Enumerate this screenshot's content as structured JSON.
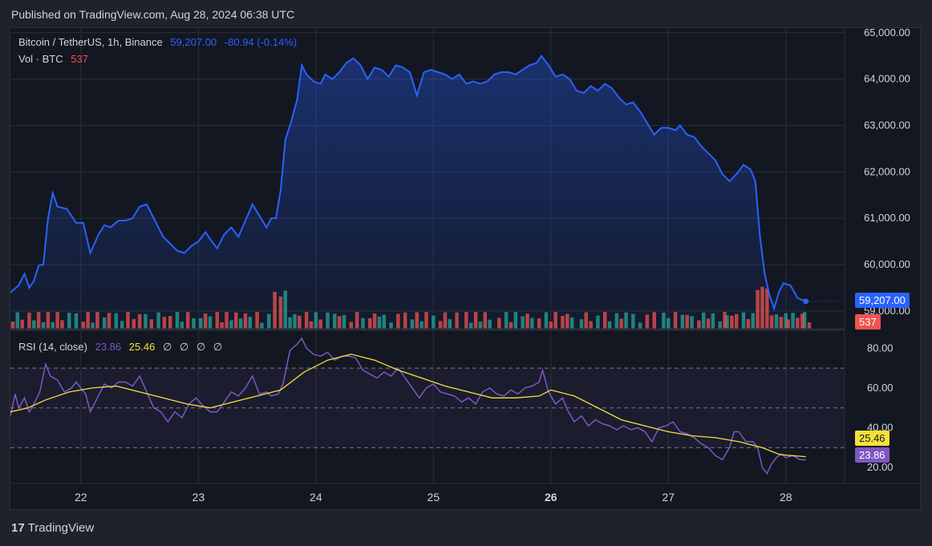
{
  "header": {
    "published": "Published on TradingView.com, Aug 28, 2024 06:38 UTC"
  },
  "legend": {
    "symbol": "Bitcoin / TetherUS, 1h, Binance",
    "price": "59,207.00",
    "change": "-80.94 (-0.14%)",
    "vol_label": "Vol · BTC",
    "vol_value": "537"
  },
  "rsi_legend": {
    "label": "RSI (14, close)",
    "rsi_value": "23.86",
    "ma_value": "25.46",
    "extras": [
      "∅",
      "∅",
      "∅",
      "∅"
    ]
  },
  "tags": {
    "price": "59,207.00",
    "volume": "537",
    "rsi_ma": "25.46",
    "rsi": "23.86"
  },
  "footer": {
    "brand": "TradingView",
    "logo_mark": "17"
  },
  "colors": {
    "line": "#2962ff",
    "up": "#26a69a",
    "down": "#ef5350",
    "rsi": "#7e57c2",
    "rsi_ma": "#f7e03a",
    "bg": "#131722"
  },
  "chart_data": {
    "type": "line",
    "price_axis": {
      "ticks": [
        "65,000.00",
        "64,000.00",
        "63,000.00",
        "62,000.00",
        "61,000.00",
        "60,000.00",
        "59,000.00"
      ],
      "range": [
        58600,
        65100
      ]
    },
    "x_ticks": [
      "22",
      "23",
      "24",
      "25",
      "26",
      "27",
      "28"
    ],
    "x_range": [
      21.4,
      28.5
    ],
    "price_series": [
      [
        21.4,
        59400
      ],
      [
        21.47,
        59550
      ],
      [
        21.52,
        59800
      ],
      [
        21.56,
        59500
      ],
      [
        21.6,
        59650
      ],
      [
        21.64,
        59980
      ],
      [
        21.68,
        60000
      ],
      [
        21.72,
        61000
      ],
      [
        21.76,
        61550
      ],
      [
        21.8,
        61250
      ],
      [
        21.88,
        61200
      ],
      [
        21.96,
        60900
      ],
      [
        22.02,
        60900
      ],
      [
        22.08,
        60250
      ],
      [
        22.15,
        60650
      ],
      [
        22.2,
        60850
      ],
      [
        22.25,
        60800
      ],
      [
        22.32,
        60950
      ],
      [
        22.38,
        60950
      ],
      [
        22.44,
        61000
      ],
      [
        22.5,
        61250
      ],
      [
        22.56,
        61300
      ],
      [
        22.62,
        61000
      ],
      [
        22.7,
        60600
      ],
      [
        22.76,
        60450
      ],
      [
        22.82,
        60300
      ],
      [
        22.88,
        60250
      ],
      [
        22.94,
        60400
      ],
      [
        23.0,
        60500
      ],
      [
        23.06,
        60700
      ],
      [
        23.1,
        60550
      ],
      [
        23.16,
        60350
      ],
      [
        23.22,
        60650
      ],
      [
        23.28,
        60800
      ],
      [
        23.34,
        60600
      ],
      [
        23.4,
        60950
      ],
      [
        23.46,
        61300
      ],
      [
        23.52,
        61050
      ],
      [
        23.58,
        60800
      ],
      [
        23.62,
        61000
      ],
      [
        23.66,
        61000
      ],
      [
        23.7,
        61600
      ],
      [
        23.74,
        62700
      ],
      [
        23.78,
        63000
      ],
      [
        23.84,
        63550
      ],
      [
        23.88,
        64300
      ],
      [
        23.92,
        64100
      ],
      [
        23.98,
        63950
      ],
      [
        24.04,
        63900
      ],
      [
        24.08,
        64100
      ],
      [
        24.14,
        64000
      ],
      [
        24.2,
        64150
      ],
      [
        24.26,
        64350
      ],
      [
        24.32,
        64450
      ],
      [
        24.38,
        64300
      ],
      [
        24.44,
        64000
      ],
      [
        24.5,
        64250
      ],
      [
        24.56,
        64200
      ],
      [
        24.62,
        64050
      ],
      [
        24.68,
        64300
      ],
      [
        24.74,
        64250
      ],
      [
        24.8,
        64150
      ],
      [
        24.86,
        63650
      ],
      [
        24.92,
        64150
      ],
      [
        24.98,
        64200
      ],
      [
        25.04,
        64150
      ],
      [
        25.1,
        64100
      ],
      [
        25.16,
        64000
      ],
      [
        25.22,
        64100
      ],
      [
        25.28,
        63900
      ],
      [
        25.34,
        63950
      ],
      [
        25.4,
        63900
      ],
      [
        25.46,
        63950
      ],
      [
        25.52,
        64100
      ],
      [
        25.58,
        64150
      ],
      [
        25.64,
        64150
      ],
      [
        25.7,
        64100
      ],
      [
        25.76,
        64200
      ],
      [
        25.82,
        64300
      ],
      [
        25.88,
        64350
      ],
      [
        25.92,
        64500
      ],
      [
        25.98,
        64300
      ],
      [
        26.04,
        64050
      ],
      [
        26.1,
        64100
      ],
      [
        26.16,
        64000
      ],
      [
        26.22,
        63750
      ],
      [
        26.28,
        63700
      ],
      [
        26.34,
        63850
      ],
      [
        26.4,
        63750
      ],
      [
        26.46,
        63900
      ],
      [
        26.52,
        63800
      ],
      [
        26.58,
        63600
      ],
      [
        26.64,
        63450
      ],
      [
        26.7,
        63500
      ],
      [
        26.76,
        63300
      ],
      [
        26.82,
        63050
      ],
      [
        26.88,
        62800
      ],
      [
        26.94,
        62950
      ],
      [
        27.0,
        62950
      ],
      [
        27.06,
        62900
      ],
      [
        27.1,
        63000
      ],
      [
        27.16,
        62800
      ],
      [
        27.22,
        62750
      ],
      [
        27.28,
        62550
      ],
      [
        27.34,
        62400
      ],
      [
        27.4,
        62250
      ],
      [
        27.46,
        61950
      ],
      [
        27.52,
        61800
      ],
      [
        27.58,
        61950
      ],
      [
        27.64,
        62150
      ],
      [
        27.7,
        62050
      ],
      [
        27.74,
        61800
      ],
      [
        27.78,
        60600
      ],
      [
        27.82,
        59800
      ],
      [
        27.86,
        59350
      ],
      [
        27.9,
        59050
      ],
      [
        27.94,
        59400
      ],
      [
        27.98,
        59600
      ],
      [
        28.04,
        59550
      ],
      [
        28.1,
        59280
      ],
      [
        28.17,
        59207
      ]
    ],
    "volume_series": {
      "up_x": [
        21.46,
        21.6,
        21.68,
        21.76,
        21.9,
        21.96,
        22.1,
        22.2,
        22.3,
        22.35,
        22.55,
        22.66,
        22.82,
        22.86,
        22.96,
        23.02,
        23.1,
        23.28,
        23.36,
        23.44,
        23.54,
        23.6,
        23.74,
        23.78,
        23.82,
        24.0,
        24.1,
        24.16,
        24.24,
        24.4,
        24.54,
        24.58,
        24.64,
        24.82,
        24.9,
        25.0,
        25.14,
        25.32,
        25.4,
        25.48,
        25.62,
        25.7,
        25.76,
        25.84,
        25.96,
        26.18,
        26.26,
        26.4,
        26.5,
        26.56,
        26.64,
        26.7,
        26.76,
        26.96,
        27.0,
        27.12,
        27.2,
        27.3,
        27.38,
        27.44,
        27.5,
        27.64,
        27.72,
        27.92,
        28.0,
        28.06,
        28.16
      ],
      "down_x": [
        21.42,
        21.5,
        21.56,
        21.64,
        21.72,
        21.8,
        21.84,
        22.02,
        22.06,
        22.14,
        22.24,
        22.4,
        22.45,
        22.5,
        22.6,
        22.71,
        22.76,
        22.91,
        23.06,
        23.16,
        23.2,
        23.24,
        23.32,
        23.4,
        23.5,
        23.65,
        23.7,
        23.86,
        23.92,
        23.96,
        24.04,
        24.2,
        24.3,
        24.35,
        24.46,
        24.5,
        24.7,
        24.76,
        24.86,
        24.94,
        25.06,
        25.1,
        25.2,
        25.28,
        25.36,
        25.44,
        25.56,
        25.66,
        25.8,
        25.9,
        26.0,
        26.04,
        26.1,
        26.14,
        26.3,
        26.34,
        26.46,
        26.6,
        26.82,
        26.88,
        27.06,
        27.16,
        27.26,
        27.34,
        27.48,
        27.54,
        27.58,
        27.68,
        27.76,
        27.8,
        27.84,
        27.88,
        27.96,
        28.02,
        28.1,
        28.14,
        28.2
      ],
      "last_value": 537
    },
    "rsi": {
      "axis_ticks": [
        "80.00",
        "60.00",
        "40.00",
        "20.00"
      ],
      "range": [
        12,
        89
      ],
      "bands": [
        70,
        50,
        30
      ],
      "rsi_series": [
        [
          21.4,
          46
        ],
        [
          21.44,
          57
        ],
        [
          21.47,
          50
        ],
        [
          21.52,
          55
        ],
        [
          21.56,
          48
        ],
        [
          21.6,
          52
        ],
        [
          21.65,
          58
        ],
        [
          21.7,
          72
        ],
        [
          21.74,
          66
        ],
        [
          21.8,
          64
        ],
        [
          21.86,
          58
        ],
        [
          21.92,
          60
        ],
        [
          21.96,
          63
        ],
        [
          22.04,
          57
        ],
        [
          22.08,
          48
        ],
        [
          22.14,
          55
        ],
        [
          22.2,
          62
        ],
        [
          22.26,
          60
        ],
        [
          22.32,
          63
        ],
        [
          22.38,
          63
        ],
        [
          22.44,
          61
        ],
        [
          22.5,
          66
        ],
        [
          22.56,
          58
        ],
        [
          22.62,
          50
        ],
        [
          22.68,
          48
        ],
        [
          22.74,
          43
        ],
        [
          22.8,
          48
        ],
        [
          22.86,
          45
        ],
        [
          22.92,
          52
        ],
        [
          22.98,
          55
        ],
        [
          23.04,
          51
        ],
        [
          23.1,
          48
        ],
        [
          23.16,
          48
        ],
        [
          23.22,
          53
        ],
        [
          23.28,
          58
        ],
        [
          23.34,
          56
        ],
        [
          23.4,
          60
        ],
        [
          23.46,
          66
        ],
        [
          23.52,
          57
        ],
        [
          23.58,
          58
        ],
        [
          23.62,
          56
        ],
        [
          23.68,
          57
        ],
        [
          23.72,
          62
        ],
        [
          23.78,
          79
        ],
        [
          23.84,
          82
        ],
        [
          23.88,
          85
        ],
        [
          23.92,
          80
        ],
        [
          23.98,
          77
        ],
        [
          24.04,
          76
        ],
        [
          24.1,
          78
        ],
        [
          24.16,
          74
        ],
        [
          24.22,
          76
        ],
        [
          24.28,
          76
        ],
        [
          24.34,
          75
        ],
        [
          24.4,
          69
        ],
        [
          24.46,
          67
        ],
        [
          24.52,
          65
        ],
        [
          24.58,
          68
        ],
        [
          24.64,
          66
        ],
        [
          24.7,
          70
        ],
        [
          24.76,
          65
        ],
        [
          24.82,
          60
        ],
        [
          24.88,
          55
        ],
        [
          24.94,
          60
        ],
        [
          25.0,
          62
        ],
        [
          25.06,
          58
        ],
        [
          25.12,
          57
        ],
        [
          25.18,
          56
        ],
        [
          25.24,
          53
        ],
        [
          25.3,
          55
        ],
        [
          25.36,
          52
        ],
        [
          25.42,
          58
        ],
        [
          25.48,
          60
        ],
        [
          25.54,
          57
        ],
        [
          25.6,
          56
        ],
        [
          25.66,
          59
        ],
        [
          25.72,
          57
        ],
        [
          25.78,
          60
        ],
        [
          25.84,
          61
        ],
        [
          25.9,
          63
        ],
        [
          25.93,
          69
        ],
        [
          25.98,
          58
        ],
        [
          26.04,
          52
        ],
        [
          26.1,
          55
        ],
        [
          26.14,
          49
        ],
        [
          26.2,
          43
        ],
        [
          26.26,
          46
        ],
        [
          26.32,
          41
        ],
        [
          26.38,
          44
        ],
        [
          26.44,
          42
        ],
        [
          26.5,
          41
        ],
        [
          26.56,
          39
        ],
        [
          26.62,
          41
        ],
        [
          26.68,
          39
        ],
        [
          26.74,
          40
        ],
        [
          26.8,
          38
        ],
        [
          26.86,
          33
        ],
        [
          26.92,
          40
        ],
        [
          26.98,
          41
        ],
        [
          27.04,
          43
        ],
        [
          27.1,
          38
        ],
        [
          27.16,
          37
        ],
        [
          27.22,
          35
        ],
        [
          27.28,
          32
        ],
        [
          27.34,
          30
        ],
        [
          27.4,
          26
        ],
        [
          27.46,
          24
        ],
        [
          27.52,
          30
        ],
        [
          27.56,
          38
        ],
        [
          27.6,
          38
        ],
        [
          27.66,
          33
        ],
        [
          27.72,
          33
        ],
        [
          27.76,
          30
        ],
        [
          27.8,
          20
        ],
        [
          27.84,
          17
        ],
        [
          27.88,
          22
        ],
        [
          27.92,
          25
        ],
        [
          27.96,
          27
        ],
        [
          28.0,
          25
        ],
        [
          28.06,
          26
        ],
        [
          28.12,
          24
        ],
        [
          28.17,
          23.86
        ]
      ],
      "ma_series": [
        [
          21.4,
          48
        ],
        [
          21.55,
          50
        ],
        [
          21.7,
          54
        ],
        [
          21.9,
          58
        ],
        [
          22.1,
          60
        ],
        [
          22.3,
          61
        ],
        [
          22.5,
          58
        ],
        [
          22.7,
          55
        ],
        [
          22.9,
          52
        ],
        [
          23.1,
          50
        ],
        [
          23.3,
          53
        ],
        [
          23.5,
          56
        ],
        [
          23.7,
          59
        ],
        [
          23.9,
          68
        ],
        [
          24.1,
          74
        ],
        [
          24.3,
          77
        ],
        [
          24.5,
          74
        ],
        [
          24.7,
          69
        ],
        [
          24.9,
          65
        ],
        [
          25.1,
          61
        ],
        [
          25.3,
          58
        ],
        [
          25.5,
          55
        ],
        [
          25.7,
          55
        ],
        [
          25.9,
          56
        ],
        [
          26.0,
          59
        ],
        [
          26.2,
          56
        ],
        [
          26.4,
          50
        ],
        [
          26.6,
          44
        ],
        [
          26.8,
          41
        ],
        [
          27.0,
          38
        ],
        [
          27.2,
          36
        ],
        [
          27.4,
          35
        ],
        [
          27.6,
          33
        ],
        [
          27.8,
          30
        ],
        [
          27.95,
          26.5
        ],
        [
          28.17,
          25.46
        ]
      ]
    }
  }
}
